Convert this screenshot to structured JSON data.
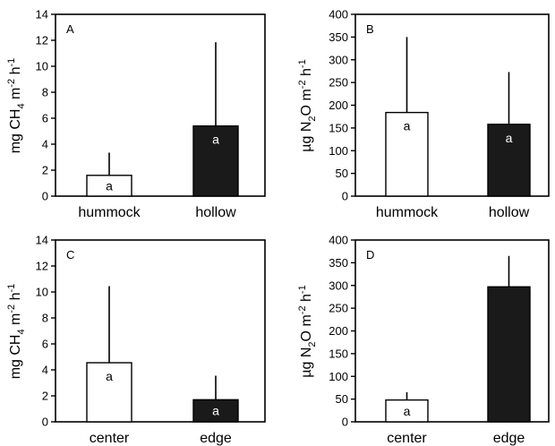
{
  "colors": {
    "open_bar": "#ffffff",
    "filled_bar": "#1a1a1a",
    "axis": "#000000"
  },
  "chart_data": [
    {
      "type": "bar",
      "panel_label": "A",
      "ylabel": {
        "base": "mg CH",
        "sub": "4",
        "mid": " m",
        "sup1": "-2",
        "tail": " h",
        "sup2": "-1"
      },
      "ylim": [
        0,
        14
      ],
      "yticks": [
        0,
        2,
        4,
        6,
        8,
        10,
        12,
        14
      ],
      "categories": [
        "hummock",
        "hollow"
      ],
      "values": [
        1.6,
        5.4
      ],
      "error_upper": [
        3.35,
        11.85
      ],
      "bar_labels": [
        "a",
        "a"
      ],
      "fills": [
        "open",
        "filled"
      ]
    },
    {
      "type": "bar",
      "panel_label": "B",
      "ylabel": {
        "base": "µg N",
        "sub": "2",
        "mid": "O m",
        "sup1": "-2",
        "tail": " h",
        "sup2": "-1"
      },
      "ylim": [
        0,
        400
      ],
      "yticks": [
        0,
        50,
        100,
        150,
        200,
        250,
        300,
        350,
        400
      ],
      "categories": [
        "hummock",
        "hollow"
      ],
      "values": [
        184,
        158
      ],
      "error_upper": [
        350,
        273
      ],
      "bar_labels": [
        "a",
        "a"
      ],
      "fills": [
        "open",
        "filled"
      ]
    },
    {
      "type": "bar",
      "panel_label": "C",
      "ylabel": {
        "base": "mg CH",
        "sub": "4",
        "mid": " m",
        "sup1": "-2",
        "tail": " h",
        "sup2": "-1"
      },
      "ylim": [
        0,
        14
      ],
      "yticks": [
        0,
        2,
        4,
        6,
        8,
        10,
        12,
        14
      ],
      "categories": [
        "center",
        "edge"
      ],
      "values": [
        4.55,
        1.7
      ],
      "error_upper": [
        10.45,
        3.55
      ],
      "bar_labels": [
        "a",
        "a"
      ],
      "fills": [
        "open",
        "filled"
      ]
    },
    {
      "type": "bar",
      "panel_label": "D",
      "ylabel": {
        "base": "µg N",
        "sub": "2",
        "mid": "O m",
        "sup1": "-2",
        "tail": " h",
        "sup2": "-1"
      },
      "ylim": [
        0,
        400
      ],
      "yticks": [
        0,
        50,
        100,
        150,
        200,
        250,
        300,
        350,
        400
      ],
      "categories": [
        "center",
        "edge"
      ],
      "values": [
        48,
        297
      ],
      "error_upper": [
        65,
        365
      ],
      "bar_labels": [
        "a",
        ""
      ],
      "fills": [
        "open",
        "filled"
      ]
    }
  ]
}
